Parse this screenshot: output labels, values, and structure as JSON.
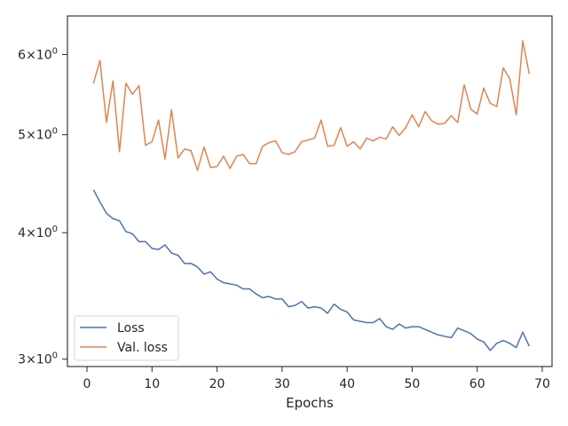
{
  "chart_data": {
    "type": "line",
    "title": "",
    "xlabel": "Epochs",
    "ylabel": "",
    "xlim": [
      -3,
      71.5
    ],
    "ylim": [
      2.95,
      6.55
    ],
    "yscale": "log",
    "xticks": [
      0,
      10,
      20,
      30,
      40,
      50,
      60,
      70
    ],
    "yticks": [
      {
        "value": 3,
        "base": "3",
        "exp": "0"
      },
      {
        "value": 4,
        "base": "4",
        "exp": "0"
      },
      {
        "value": 5,
        "base": "5",
        "exp": "0"
      },
      {
        "value": 6,
        "base": "6",
        "exp": "0"
      }
    ],
    "legend_position": "lower-left",
    "grid": false,
    "x": [
      1,
      2,
      3,
      4,
      5,
      6,
      7,
      8,
      9,
      10,
      11,
      12,
      13,
      14,
      15,
      16,
      17,
      18,
      19,
      20,
      21,
      22,
      23,
      24,
      25,
      26,
      27,
      28,
      29,
      30,
      31,
      32,
      33,
      34,
      35,
      36,
      37,
      38,
      39,
      40,
      41,
      42,
      43,
      44,
      45,
      46,
      47,
      48,
      49,
      50,
      51,
      52,
      53,
      54,
      55,
      56,
      57,
      58,
      59,
      60,
      61,
      62,
      63,
      64,
      65,
      66,
      67,
      68
    ],
    "series": [
      {
        "name": "Loss",
        "color": "#4c72b0",
        "values": [
          4.41,
          4.29,
          4.18,
          4.13,
          4.11,
          4.01,
          3.99,
          3.92,
          3.92,
          3.86,
          3.85,
          3.89,
          3.82,
          3.8,
          3.73,
          3.73,
          3.7,
          3.64,
          3.66,
          3.6,
          3.57,
          3.56,
          3.55,
          3.52,
          3.52,
          3.48,
          3.45,
          3.46,
          3.44,
          3.44,
          3.38,
          3.39,
          3.42,
          3.37,
          3.38,
          3.37,
          3.33,
          3.4,
          3.36,
          3.34,
          3.28,
          3.27,
          3.26,
          3.26,
          3.29,
          3.23,
          3.21,
          3.25,
          3.22,
          3.23,
          3.23,
          3.21,
          3.19,
          3.17,
          3.16,
          3.15,
          3.22,
          3.2,
          3.18,
          3.14,
          3.12,
          3.06,
          3.11,
          3.13,
          3.11,
          3.08,
          3.19,
          3.09
        ]
      },
      {
        "name": "Val. loss",
        "color": "#dd8452",
        "values": [
          5.62,
          5.92,
          5.14,
          5.65,
          4.81,
          5.62,
          5.48,
          5.59,
          4.88,
          4.92,
          5.17,
          4.73,
          5.29,
          4.74,
          4.84,
          4.82,
          4.61,
          4.86,
          4.64,
          4.65,
          4.76,
          4.63,
          4.76,
          4.78,
          4.68,
          4.68,
          4.87,
          4.91,
          4.93,
          4.8,
          4.78,
          4.81,
          4.92,
          4.94,
          4.96,
          5.17,
          4.87,
          4.88,
          5.08,
          4.87,
          4.92,
          4.84,
          4.96,
          4.93,
          4.97,
          4.95,
          5.09,
          4.99,
          5.08,
          5.23,
          5.09,
          5.27,
          5.16,
          5.12,
          5.13,
          5.22,
          5.14,
          5.6,
          5.3,
          5.24,
          5.56,
          5.37,
          5.33,
          5.82,
          5.68,
          5.23,
          6.19,
          5.74
        ]
      }
    ]
  }
}
